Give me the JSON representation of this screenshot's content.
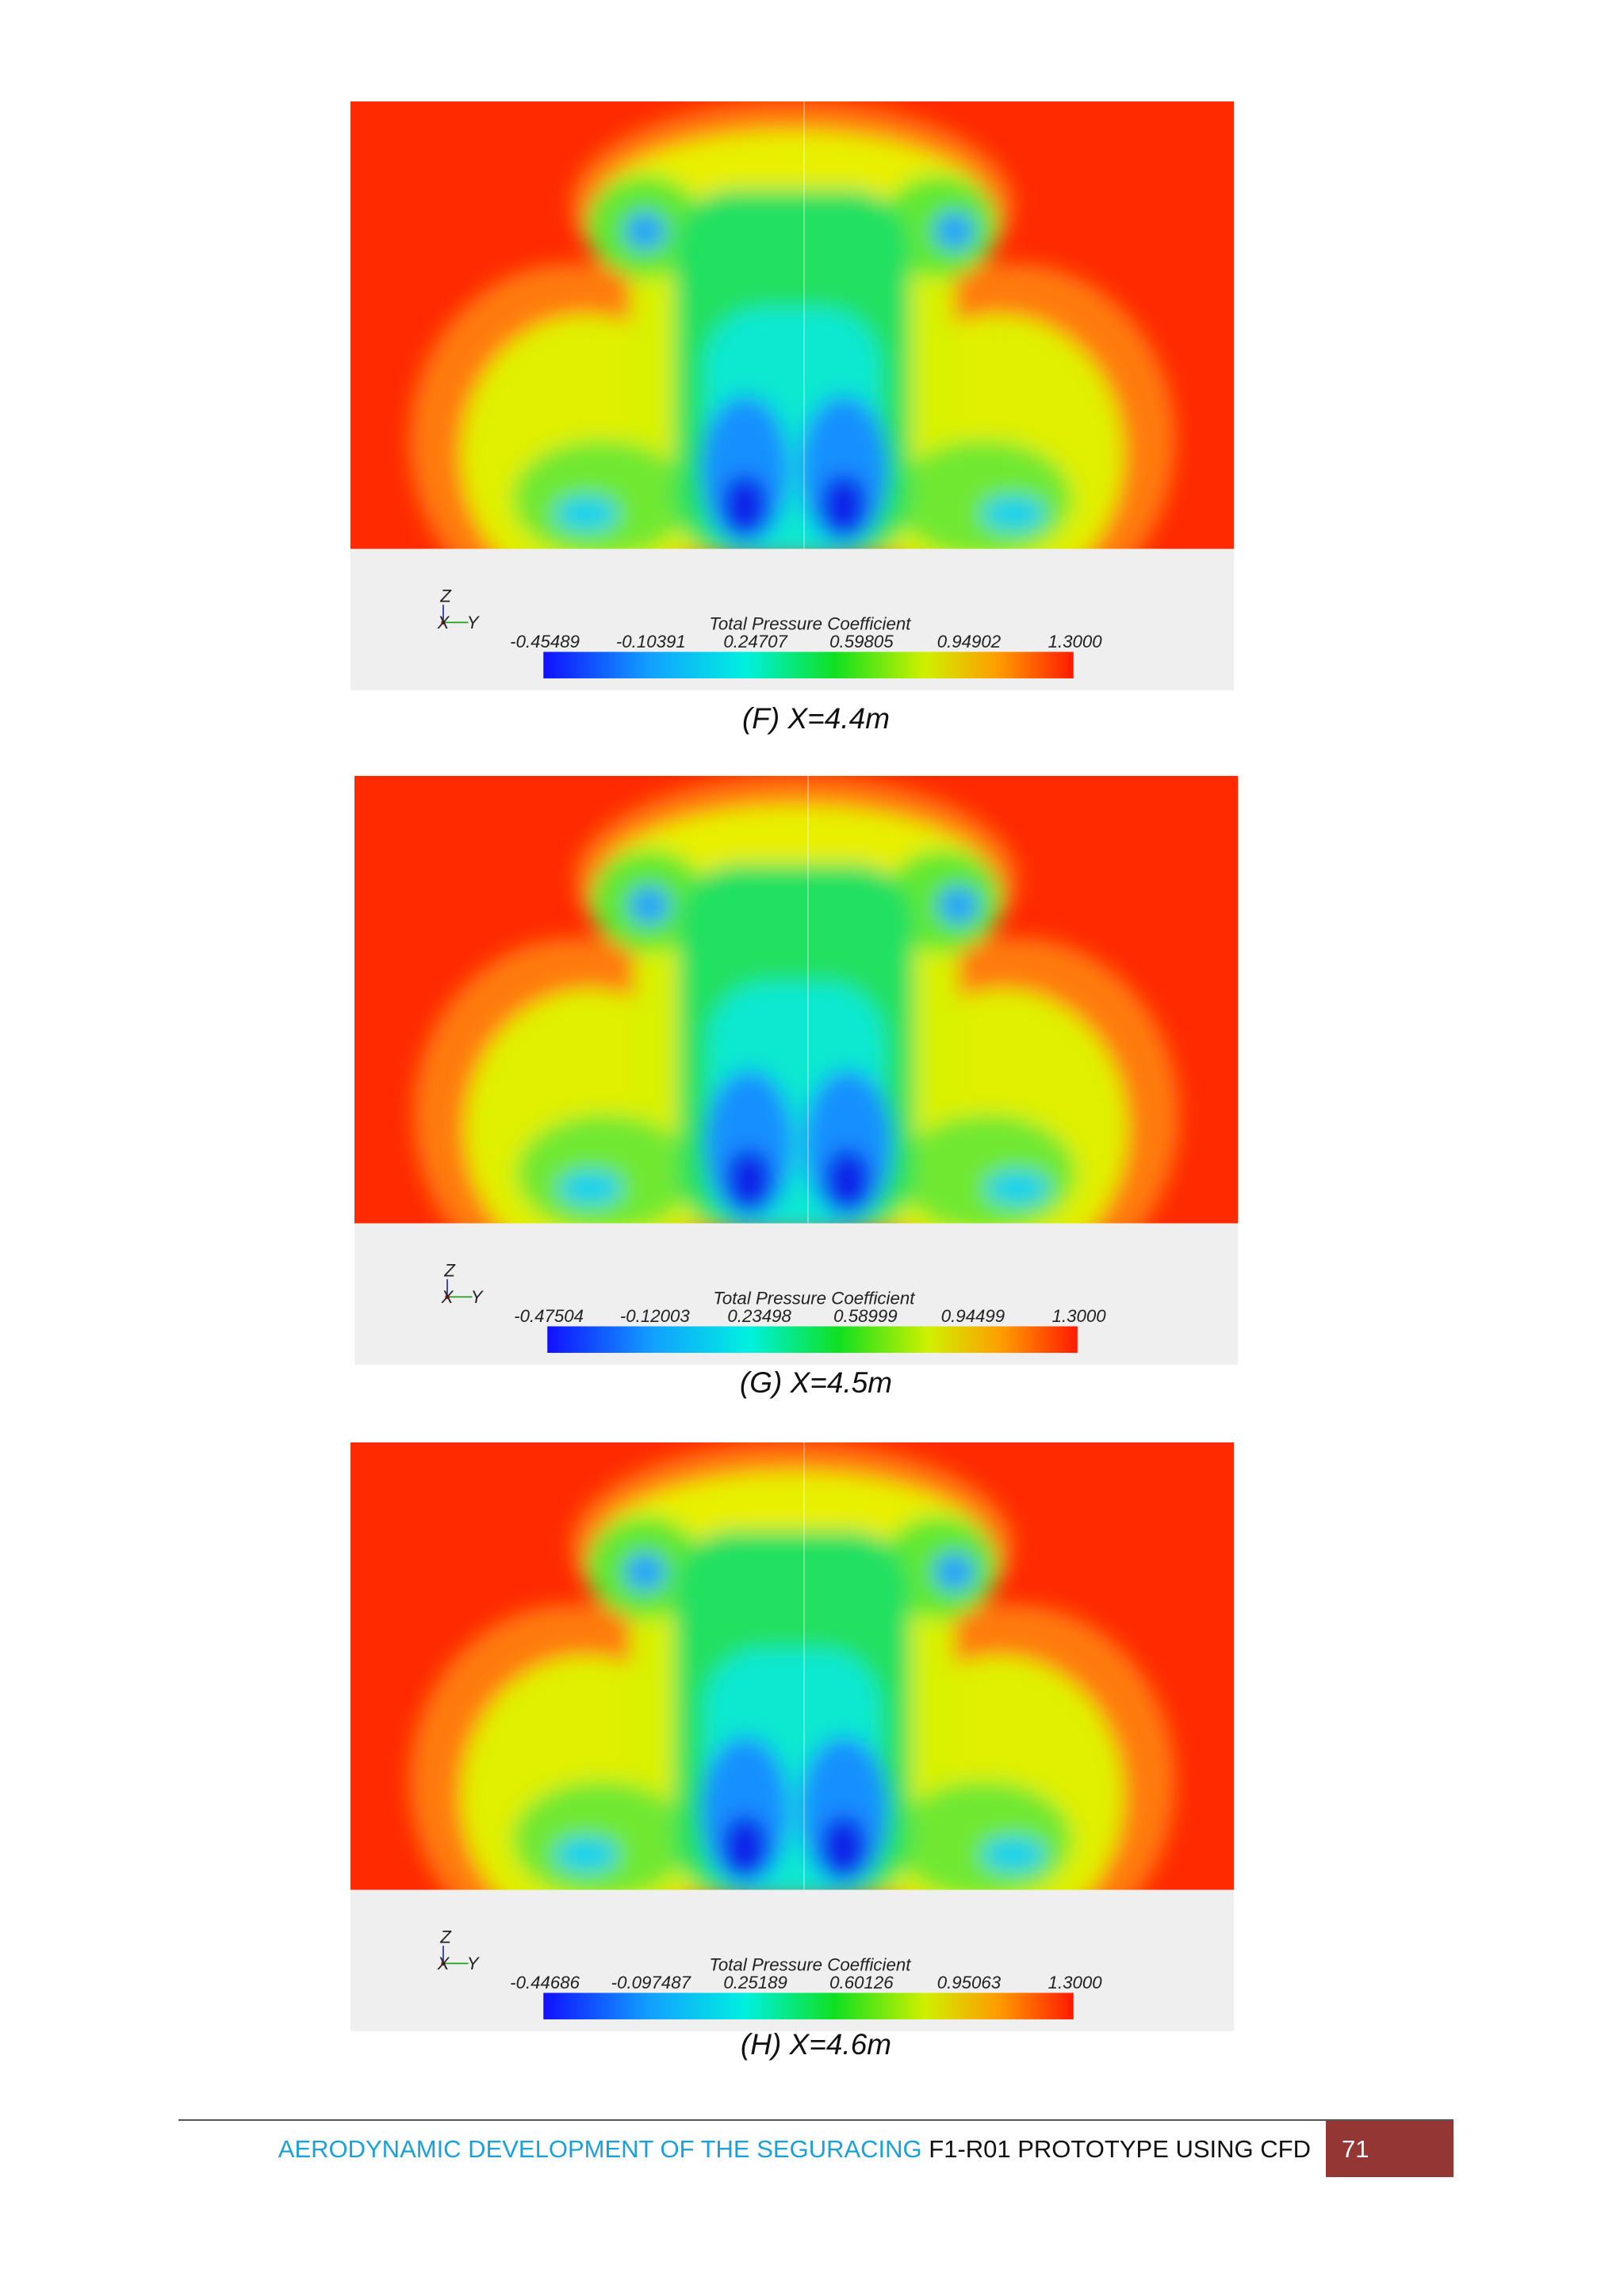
{
  "figures": [
    {
      "axes": [
        "Z",
        "X",
        "Y"
      ],
      "legend": {
        "title": "Total Pressure Coefficient",
        "labels": [
          "-0.45489",
          "-0.10391",
          "0.24707",
          "0.59805",
          "0.94902",
          "1.3000"
        ]
      },
      "caption": "(F) X=4.4m"
    },
    {
      "axes": [
        "Z",
        "X",
        "Y"
      ],
      "legend": {
        "title": "Total Pressure Coefficient",
        "labels": [
          "-0.47504",
          "-0.12003",
          "0.23498",
          "0.58999",
          "0.94499",
          "1.3000"
        ]
      },
      "caption": "(G) X=4.5m"
    },
    {
      "axes": [
        "Z",
        "X",
        "Y"
      ],
      "legend": {
        "title": "Total Pressure Coefficient",
        "labels": [
          "-0.44686",
          "-0.097487",
          "0.25189",
          "0.60126",
          "0.95063",
          "1.3000"
        ]
      },
      "caption": "(H) X=4.6m"
    }
  ],
  "footer": {
    "title_blue": "AERODYNAMIC DEVELOPMENT OF THE SEGURACING",
    "title_black": "F1-R01 PROTOTYPE USING CFD",
    "page": "71"
  }
}
